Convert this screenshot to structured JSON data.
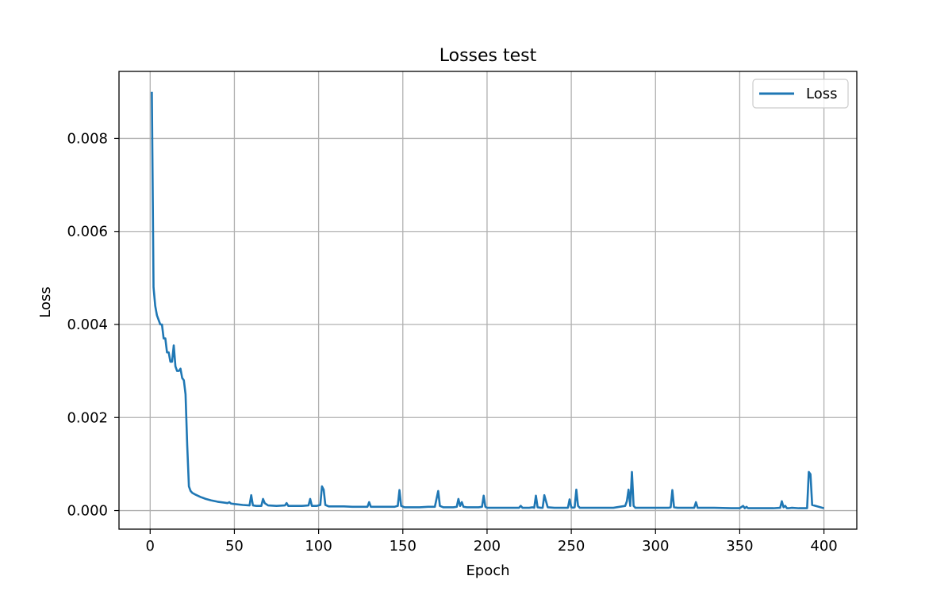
{
  "chart_data": {
    "type": "line",
    "title": "Losses test",
    "xlabel": "Epoch",
    "ylabel": "Loss",
    "xlim": [
      -18.5,
      419.5
    ],
    "ylim": [
      -0.0004,
      0.00944
    ],
    "xticks": [
      0,
      50,
      100,
      150,
      200,
      250,
      300,
      350,
      400
    ],
    "xtick_labels": [
      "0",
      "50",
      "100",
      "150",
      "200",
      "250",
      "300",
      "350",
      "400"
    ],
    "yticks": [
      0.0,
      0.002,
      0.004,
      0.006,
      0.008
    ],
    "ytick_labels": [
      "0.000",
      "0.002",
      "0.004",
      "0.006",
      "0.008"
    ],
    "grid": true,
    "legend_position": "top-right",
    "colors": {
      "series": "#1f77b4",
      "grid": "#b0b0b0",
      "axes": "#000000"
    },
    "series": [
      {
        "name": "Loss",
        "x": [
          1,
          2,
          3,
          4,
          5,
          6,
          7,
          8,
          9,
          10,
          11,
          12,
          13,
          14,
          15,
          16,
          17,
          18,
          19,
          20,
          21,
          22,
          23,
          24,
          25,
          27,
          30,
          33,
          36,
          40,
          44,
          46,
          47,
          48,
          50,
          55,
          59,
          60,
          61,
          63,
          66,
          67,
          68,
          70,
          75,
          80,
          81,
          82,
          85,
          90,
          94,
          95,
          96,
          99,
          101,
          102,
          103,
          104,
          106,
          110,
          115,
          120,
          125,
          129,
          130,
          131,
          133,
          138,
          145,
          147,
          148,
          149,
          151,
          155,
          160,
          165,
          169,
          170,
          171,
          172,
          174,
          180,
          182,
          183,
          184,
          185,
          186,
          188,
          195,
          197,
          198,
          199,
          200,
          205,
          210,
          215,
          219,
          220,
          221,
          225,
          227,
          228,
          229,
          230,
          232,
          233,
          234,
          236,
          240,
          245,
          248,
          249,
          250,
          251,
          252,
          253,
          254,
          255,
          257,
          265,
          275,
          282,
          283,
          284,
          285,
          286,
          287,
          288,
          290,
          300,
          308,
          309,
          310,
          311,
          313,
          320,
          323,
          324,
          325,
          327,
          335,
          345,
          350,
          352,
          353,
          354,
          355,
          356,
          360,
          370,
          374,
          375,
          376,
          377,
          378,
          379,
          381,
          385,
          389,
          390,
          391,
          392,
          393,
          400
        ],
        "values": [
          0.009,
          0.0048,
          0.0044,
          0.0042,
          0.0041,
          0.004,
          0.004,
          0.0037,
          0.0037,
          0.0034,
          0.0034,
          0.0032,
          0.0032,
          0.00355,
          0.0031,
          0.003,
          0.003,
          0.00305,
          0.00285,
          0.0028,
          0.0025,
          0.0014,
          0.00052,
          0.00042,
          0.00038,
          0.00034,
          0.00029,
          0.00025,
          0.00022,
          0.00019,
          0.00017,
          0.00016,
          0.00018,
          0.00015,
          0.00014,
          0.00012,
          0.00011,
          0.00033,
          0.00011,
          0.0001,
          0.0001,
          0.00025,
          0.00016,
          0.00011,
          0.0001,
          0.00011,
          0.00016,
          0.0001,
          0.0001,
          0.0001,
          0.00011,
          0.00025,
          0.0001,
          0.0001,
          0.00012,
          0.00052,
          0.00045,
          0.00012,
          9e-05,
          9e-05,
          9e-05,
          8e-05,
          8e-05,
          8e-05,
          0.00018,
          8e-05,
          8e-05,
          8e-05,
          8e-05,
          0.0001,
          0.00044,
          0.0001,
          7e-05,
          7e-05,
          7e-05,
          8e-05,
          8e-05,
          0.00025,
          0.00042,
          0.0001,
          7e-05,
          7e-05,
          8e-05,
          0.00025,
          0.0001,
          0.00018,
          8e-05,
          7e-05,
          7e-05,
          8e-05,
          0.00032,
          8e-05,
          6e-05,
          6e-05,
          6e-05,
          6e-05,
          6e-05,
          0.0001,
          6e-05,
          6e-05,
          7e-05,
          6e-05,
          0.00032,
          7e-05,
          6e-05,
          6e-05,
          0.00033,
          7e-05,
          6e-05,
          6e-05,
          6e-05,
          0.00024,
          7e-05,
          6e-05,
          7e-05,
          0.00045,
          0.0001,
          6e-05,
          6e-05,
          6e-05,
          6e-05,
          0.0001,
          0.0002,
          0.00045,
          0.0001,
          0.00083,
          0.0001,
          6e-05,
          6e-05,
          6e-05,
          6e-05,
          7e-05,
          0.00044,
          7e-05,
          6e-05,
          6e-05,
          6e-05,
          0.00018,
          6e-05,
          6e-05,
          6e-05,
          5e-05,
          5e-05,
          0.0001,
          5e-05,
          8e-05,
          5e-05,
          5e-05,
          5e-05,
          5e-05,
          6e-05,
          0.0002,
          7e-05,
          0.0001,
          5e-05,
          5e-05,
          6e-05,
          5e-05,
          5e-05,
          5e-05,
          0.00083,
          0.00078,
          0.00012,
          5e-05
        ]
      }
    ]
  }
}
